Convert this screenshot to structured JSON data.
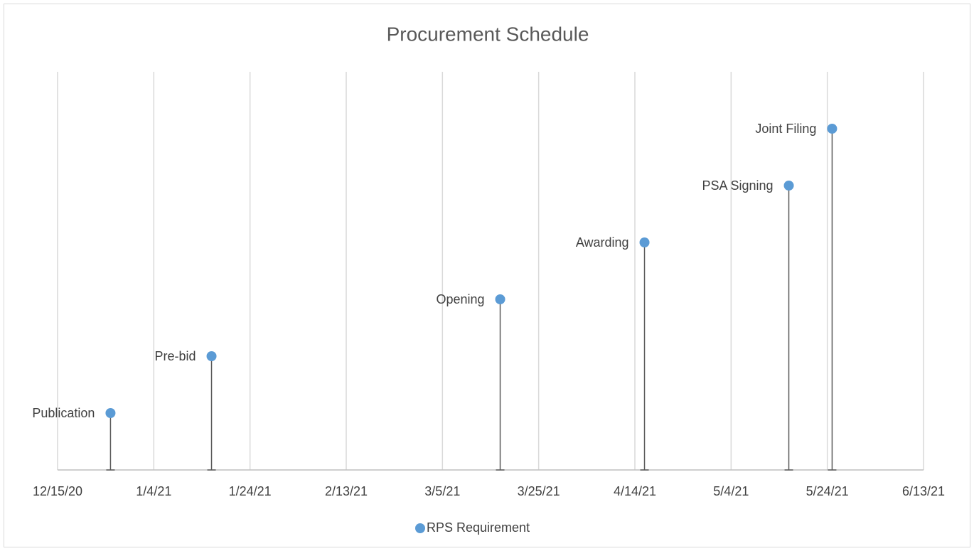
{
  "chart_data": {
    "type": "scatter",
    "title": "Procurement Schedule",
    "series": [
      {
        "name": "RPS Requirement",
        "color": "#5b9bd5",
        "x": [
          "12/26/20",
          "1/16/21",
          "3/17/21",
          "4/16/21",
          "5/16/21",
          "5/25/21"
        ],
        "values": [
          1,
          2,
          3,
          4,
          5,
          6
        ],
        "labels": [
          "Publication",
          "Pre-bid",
          "Opening",
          "Awarding",
          "PSA Signing",
          "Joint Filing"
        ]
      }
    ],
    "xlim": [
      "12/15/20",
      "6/13/21"
    ],
    "xticks": [
      "12/15/20",
      "1/4/21",
      "1/24/21",
      "2/13/21",
      "3/5/21",
      "3/25/21",
      "4/14/21",
      "5/4/21",
      "5/24/21",
      "6/13/21"
    ],
    "ylim": [
      0,
      7
    ],
    "grid": true,
    "legend": "bottom"
  }
}
